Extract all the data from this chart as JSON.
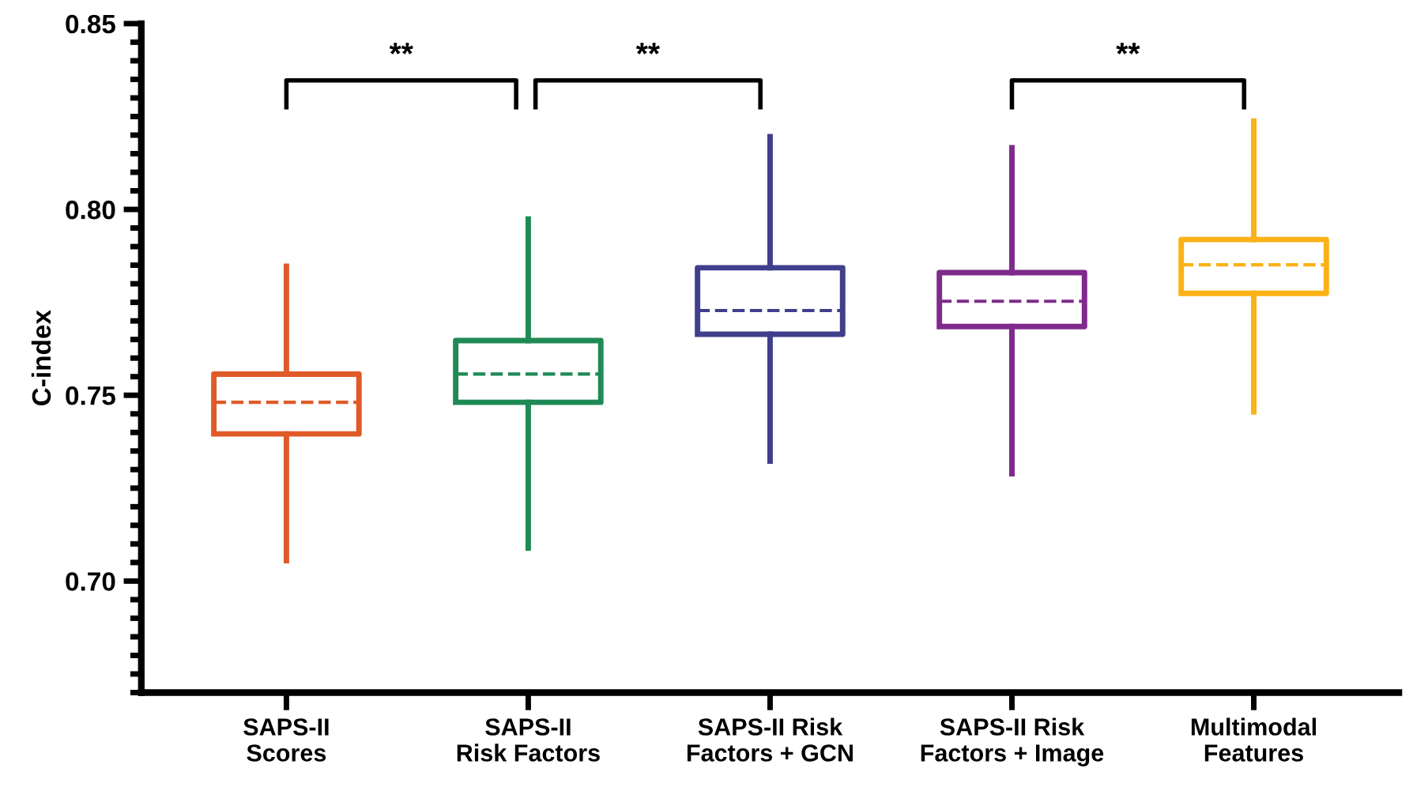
{
  "chart_data": {
    "type": "box",
    "ylabel": "C-index",
    "categories": [
      "SAPS-II\nScores",
      "SAPS-II\nRisk Factors",
      "SAPS-II Risk\nFactors + GCN",
      "SAPS-II Risk\nFactors + Image",
      "Multimodal\nFeatures"
    ],
    "colors": [
      "#e05a28",
      "#1f8a55",
      "#3f3f8c",
      "#7f2a8c",
      "#fbb216"
    ],
    "boxes": [
      {
        "low": 0.7055,
        "q1": 0.7396,
        "median": 0.7481,
        "q3": 0.7557,
        "high": 0.7847
      },
      {
        "low": 0.7089,
        "q1": 0.7481,
        "median": 0.7557,
        "q3": 0.7647,
        "high": 0.7974
      },
      {
        "low": 0.7323,
        "q1": 0.7664,
        "median": 0.7728,
        "q3": 0.7843,
        "high": 0.8196
      },
      {
        "low": 0.7289,
        "q1": 0.7685,
        "median": 0.7753,
        "q3": 0.783,
        "high": 0.8166
      },
      {
        "low": 0.7455,
        "q1": 0.7774,
        "median": 0.7851,
        "q3": 0.7919,
        "high": 0.8238
      }
    ],
    "ylim": [
      0.67,
      0.85
    ],
    "yticks": [
      {
        "value": 0.67,
        "label": null
      },
      {
        "value": 0.675,
        "label": null
      },
      {
        "value": 0.68,
        "label": null
      },
      {
        "value": 0.685,
        "label": null
      },
      {
        "value": 0.69,
        "label": null
      },
      {
        "value": 0.695,
        "label": null
      },
      {
        "value": 0.7,
        "label": "0.70"
      },
      {
        "value": 0.705,
        "label": null
      },
      {
        "value": 0.71,
        "label": null
      },
      {
        "value": 0.715,
        "label": null
      },
      {
        "value": 0.72,
        "label": null
      },
      {
        "value": 0.725,
        "label": null
      },
      {
        "value": 0.73,
        "label": null
      },
      {
        "value": 0.735,
        "label": null
      },
      {
        "value": 0.74,
        "label": null
      },
      {
        "value": 0.745,
        "label": null
      },
      {
        "value": 0.75,
        "label": "0.75"
      },
      {
        "value": 0.755,
        "label": null
      },
      {
        "value": 0.76,
        "label": null
      },
      {
        "value": 0.765,
        "label": null
      },
      {
        "value": 0.77,
        "label": null
      },
      {
        "value": 0.775,
        "label": null
      },
      {
        "value": 0.78,
        "label": null
      },
      {
        "value": 0.785,
        "label": null
      },
      {
        "value": 0.79,
        "label": null
      },
      {
        "value": 0.795,
        "label": null
      },
      {
        "value": 0.8,
        "label": "0.80"
      },
      {
        "value": 0.805,
        "label": null
      },
      {
        "value": 0.81,
        "label": null
      },
      {
        "value": 0.815,
        "label": null
      },
      {
        "value": 0.82,
        "label": null
      },
      {
        "value": 0.825,
        "label": null
      },
      {
        "value": 0.83,
        "label": null
      },
      {
        "value": 0.835,
        "label": null
      },
      {
        "value": 0.84,
        "label": null
      },
      {
        "value": 0.845,
        "label": null
      },
      {
        "value": 0.85,
        "label": "0.85"
      }
    ],
    "grid": false,
    "legend": false,
    "annotations": [
      "**",
      "**",
      "**"
    ]
  }
}
